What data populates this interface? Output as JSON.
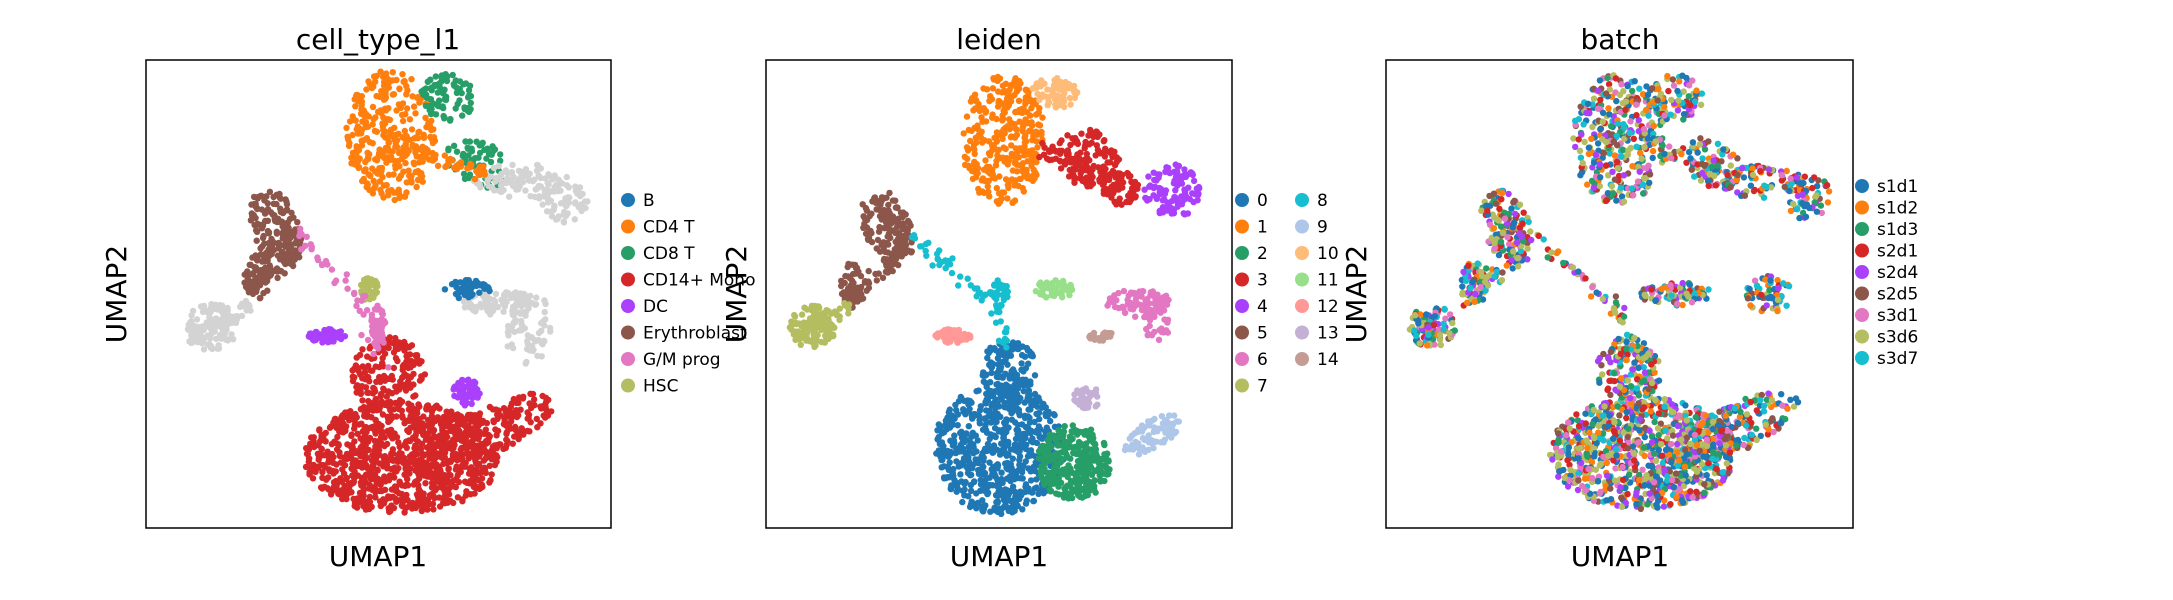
{
  "chart_data": [
    {
      "type": "scatter",
      "title": "cell_type_l1",
      "xlabel": "UMAP1",
      "ylabel": "UMAP2",
      "grid": false,
      "legend_placement": "right",
      "legend": [
        {
          "label": "B",
          "color": "#1f77b4"
        },
        {
          "label": "CD4 T",
          "color": "#ff7f0e"
        },
        {
          "label": "CD8 T",
          "color": "#279e68"
        },
        {
          "label": "CD14+ Mono",
          "color": "#d62728"
        },
        {
          "label": "DC",
          "color": "#aa40fc"
        },
        {
          "label": "Erythroblast",
          "color": "#8c564b"
        },
        {
          "label": "G/M prog",
          "color": "#e377c2"
        },
        {
          "label": "HSC",
          "color": "#b5bd61"
        }
      ],
      "regions": [
        {
          "category": "CD4 T",
          "cx": 0.53,
          "cy": 0.84,
          "rx": 0.1,
          "ry": 0.14,
          "rot": 0,
          "n": 320
        },
        {
          "category": "CD8 T",
          "cx": 0.65,
          "cy": 0.92,
          "rx": 0.06,
          "ry": 0.05,
          "rot": 0,
          "n": 80
        },
        {
          "category": "CD8 T",
          "cx": 0.71,
          "cy": 0.78,
          "rx": 0.07,
          "ry": 0.05,
          "rot": -30,
          "n": 60
        },
        {
          "category": "unassigned",
          "cx": 0.8,
          "cy": 0.74,
          "rx": 0.1,
          "ry": 0.04,
          "rot": 0,
          "n": 90
        },
        {
          "category": "unassigned",
          "cx": 0.9,
          "cy": 0.7,
          "rx": 0.05,
          "ry": 0.05,
          "rot": 0,
          "n": 60
        },
        {
          "category": "unassigned",
          "cx": 0.14,
          "cy": 0.43,
          "rx": 0.06,
          "ry": 0.05,
          "rot": 0,
          "n": 100
        },
        {
          "category": "unassigned",
          "cx": 0.77,
          "cy": 0.48,
          "rx": 0.09,
          "ry": 0.025,
          "rot": 0,
          "n": 90
        },
        {
          "category": "unassigned",
          "cx": 0.82,
          "cy": 0.42,
          "rx": 0.05,
          "ry": 0.07,
          "rot": 0,
          "n": 60
        },
        {
          "category": "B",
          "cx": 0.69,
          "cy": 0.51,
          "rx": 0.05,
          "ry": 0.02,
          "rot": 0,
          "n": 60
        },
        {
          "category": "Erythroblast",
          "cx": 0.28,
          "cy": 0.64,
          "rx": 0.05,
          "ry": 0.09,
          "rot": 20,
          "n": 140
        },
        {
          "category": "Erythroblast",
          "cx": 0.24,
          "cy": 0.54,
          "rx": 0.03,
          "ry": 0.05,
          "rot": 0,
          "n": 60
        },
        {
          "category": "CD14+ Mono",
          "cx": 0.55,
          "cy": 0.15,
          "rx": 0.21,
          "ry": 0.12,
          "rot": 0,
          "n": 900
        },
        {
          "category": "CD14+ Mono",
          "cx": 0.72,
          "cy": 0.2,
          "rx": 0.18,
          "ry": 0.05,
          "rot": 25,
          "n": 250
        },
        {
          "category": "CD14+ Mono",
          "cx": 0.52,
          "cy": 0.33,
          "rx": 0.08,
          "ry": 0.08,
          "rot": 0,
          "n": 180
        },
        {
          "category": "DC",
          "cx": 0.39,
          "cy": 0.41,
          "rx": 0.04,
          "ry": 0.015,
          "rot": 0,
          "n": 60
        },
        {
          "category": "DC",
          "cx": 0.69,
          "cy": 0.29,
          "rx": 0.03,
          "ry": 0.03,
          "rot": 0,
          "n": 50
        },
        {
          "category": "G/M prog",
          "cx": 0.5,
          "cy": 0.43,
          "rx": 0.015,
          "ry": 0.05,
          "rot": 0,
          "n": 40
        },
        {
          "category": "HSC",
          "cx": 0.48,
          "cy": 0.51,
          "rx": 0.02,
          "ry": 0.025,
          "rot": 0,
          "n": 40
        }
      ],
      "paths": [
        {
          "category": "Erythroblast",
          "pts": [
            [
              0.3,
              0.66
            ],
            [
              0.31,
              0.61
            ],
            [
              0.3,
              0.56
            ],
            [
              0.26,
              0.54
            ],
            [
              0.22,
              0.5
            ]
          ],
          "n": 60
        },
        {
          "category": "unassigned",
          "pts": [
            [
              0.22,
              0.48
            ],
            [
              0.18,
              0.44
            ],
            [
              0.1,
              0.42
            ]
          ],
          "n": 50
        },
        {
          "category": "G/M prog",
          "pts": [
            [
              0.33,
              0.63
            ],
            [
              0.39,
              0.56
            ],
            [
              0.46,
              0.49
            ],
            [
              0.49,
              0.42
            ],
            [
              0.51,
              0.34
            ]
          ],
          "n": 45
        },
        {
          "category": "CD4 T",
          "pts": [
            [
              0.59,
              0.8
            ],
            [
              0.66,
              0.78
            ],
            [
              0.73,
              0.76
            ]
          ],
          "n": 40
        }
      ]
    },
    {
      "type": "scatter",
      "title": "leiden",
      "xlabel": "UMAP1",
      "ylabel": "UMAP2",
      "grid": false,
      "legend_placement": "right",
      "legend": [
        {
          "label": "0",
          "color": "#1f77b4"
        },
        {
          "label": "1",
          "color": "#ff7f0e"
        },
        {
          "label": "2",
          "color": "#279e68"
        },
        {
          "label": "3",
          "color": "#d62728"
        },
        {
          "label": "4",
          "color": "#aa40fc"
        },
        {
          "label": "5",
          "color": "#8c564b"
        },
        {
          "label": "6",
          "color": "#e377c2"
        },
        {
          "label": "7",
          "color": "#b5bd61"
        },
        {
          "label": "8",
          "color": "#17becf"
        },
        {
          "label": "9",
          "color": "#aec7e8"
        },
        {
          "label": "10",
          "color": "#ffbb78"
        },
        {
          "label": "11",
          "color": "#98df8a"
        },
        {
          "label": "12",
          "color": "#ff9896"
        },
        {
          "label": "13",
          "color": "#c5b0d5"
        },
        {
          "label": "14",
          "color": "#c49c94"
        }
      ],
      "regions": [
        {
          "category": "1",
          "cx": 0.51,
          "cy": 0.83,
          "rx": 0.09,
          "ry": 0.14,
          "rot": 0,
          "n": 320
        },
        {
          "category": "10",
          "cx": 0.62,
          "cy": 0.93,
          "rx": 0.05,
          "ry": 0.035,
          "rot": 0,
          "n": 70
        },
        {
          "category": "3",
          "cx": 0.69,
          "cy": 0.79,
          "rx": 0.07,
          "ry": 0.06,
          "rot": -30,
          "n": 110
        },
        {
          "category": "3",
          "cx": 0.76,
          "cy": 0.73,
          "rx": 0.04,
          "ry": 0.04,
          "rot": 0,
          "n": 70
        },
        {
          "category": "4",
          "cx": 0.87,
          "cy": 0.72,
          "rx": 0.06,
          "ry": 0.06,
          "rot": 0,
          "n": 110
        },
        {
          "category": "7",
          "cx": 0.1,
          "cy": 0.43,
          "rx": 0.05,
          "ry": 0.045,
          "rot": 0,
          "n": 100
        },
        {
          "category": "5",
          "cx": 0.26,
          "cy": 0.64,
          "rx": 0.05,
          "ry": 0.09,
          "rot": 20,
          "n": 130
        },
        {
          "category": "5",
          "cx": 0.19,
          "cy": 0.52,
          "rx": 0.03,
          "ry": 0.05,
          "rot": 0,
          "n": 60
        },
        {
          "category": "12",
          "cx": 0.4,
          "cy": 0.41,
          "rx": 0.04,
          "ry": 0.015,
          "rot": 0,
          "n": 50
        },
        {
          "category": "11",
          "cx": 0.62,
          "cy": 0.51,
          "rx": 0.05,
          "ry": 0.02,
          "rot": 0,
          "n": 50
        },
        {
          "category": "6",
          "cx": 0.8,
          "cy": 0.48,
          "rx": 0.07,
          "ry": 0.03,
          "rot": 0,
          "n": 70
        },
        {
          "category": "6",
          "cx": 0.84,
          "cy": 0.44,
          "rx": 0.03,
          "ry": 0.04,
          "rot": 0,
          "n": 30
        },
        {
          "category": "14",
          "cx": 0.72,
          "cy": 0.41,
          "rx": 0.03,
          "ry": 0.01,
          "rot": 0,
          "n": 20
        },
        {
          "category": "0",
          "cx": 0.5,
          "cy": 0.17,
          "rx": 0.14,
          "ry": 0.14,
          "rot": 0,
          "n": 650
        },
        {
          "category": "0",
          "cx": 0.52,
          "cy": 0.34,
          "rx": 0.06,
          "ry": 0.06,
          "rot": 0,
          "n": 120
        },
        {
          "category": "2",
          "cx": 0.66,
          "cy": 0.14,
          "rx": 0.08,
          "ry": 0.08,
          "rot": 0,
          "n": 300
        },
        {
          "category": "9",
          "cx": 0.83,
          "cy": 0.2,
          "rx": 0.07,
          "ry": 0.03,
          "rot": 30,
          "n": 80
        },
        {
          "category": "13",
          "cx": 0.69,
          "cy": 0.28,
          "rx": 0.03,
          "ry": 0.025,
          "rot": 0,
          "n": 40
        },
        {
          "category": "8",
          "cx": 0.5,
          "cy": 0.5,
          "rx": 0.02,
          "ry": 0.03,
          "rot": 0,
          "n": 40
        }
      ],
      "paths": [
        {
          "category": "5",
          "pts": [
            [
              0.28,
              0.66
            ],
            [
              0.29,
              0.61
            ],
            [
              0.27,
              0.56
            ],
            [
              0.22,
              0.53
            ],
            [
              0.17,
              0.48
            ]
          ],
          "n": 60
        },
        {
          "category": "7",
          "pts": [
            [
              0.17,
              0.47
            ],
            [
              0.13,
              0.44
            ],
            [
              0.07,
              0.43
            ]
          ],
          "n": 40
        },
        {
          "category": "8",
          "pts": [
            [
              0.31,
              0.63
            ],
            [
              0.38,
              0.57
            ],
            [
              0.45,
              0.51
            ],
            [
              0.5,
              0.46
            ],
            [
              0.51,
              0.38
            ]
          ],
          "n": 50
        },
        {
          "category": "3",
          "pts": [
            [
              0.59,
              0.81
            ],
            [
              0.65,
              0.79
            ],
            [
              0.72,
              0.76
            ]
          ],
          "n": 40
        }
      ]
    },
    {
      "type": "scatter",
      "title": "batch",
      "xlabel": "UMAP1",
      "ylabel": "UMAP2",
      "grid": false,
      "legend_placement": "right",
      "legend": [
        {
          "label": "s1d1",
          "color": "#1f77b4"
        },
        {
          "label": "s1d2",
          "color": "#ff7f0e"
        },
        {
          "label": "s1d3",
          "color": "#279e68"
        },
        {
          "label": "s2d1",
          "color": "#d62728"
        },
        {
          "label": "s2d4",
          "color": "#aa40fc"
        },
        {
          "label": "s2d5",
          "color": "#8c564b"
        },
        {
          "label": "s3d1",
          "color": "#e377c2"
        },
        {
          "label": "s3d6",
          "color": "#b5bd61"
        },
        {
          "label": "s3d7",
          "color": "#17becf"
        }
      ],
      "regions": [
        {
          "category": "mixed",
          "cx": 0.5,
          "cy": 0.83,
          "rx": 0.1,
          "ry": 0.14,
          "rot": 0,
          "n": 340
        },
        {
          "category": "mixed",
          "cx": 0.62,
          "cy": 0.92,
          "rx": 0.06,
          "ry": 0.05,
          "rot": 0,
          "n": 80
        },
        {
          "category": "mixed",
          "cx": 0.7,
          "cy": 0.78,
          "rx": 0.07,
          "ry": 0.05,
          "rot": -30,
          "n": 70
        },
        {
          "category": "mixed",
          "cx": 0.8,
          "cy": 0.74,
          "rx": 0.08,
          "ry": 0.035,
          "rot": 0,
          "n": 70
        },
        {
          "category": "mixed",
          "cx": 0.9,
          "cy": 0.71,
          "rx": 0.05,
          "ry": 0.05,
          "rot": 0,
          "n": 70
        },
        {
          "category": "mixed",
          "cx": 0.1,
          "cy": 0.43,
          "rx": 0.05,
          "ry": 0.045,
          "rot": 0,
          "n": 100
        },
        {
          "category": "mixed",
          "cx": 0.26,
          "cy": 0.64,
          "rx": 0.05,
          "ry": 0.09,
          "rot": 20,
          "n": 130
        },
        {
          "category": "mixed",
          "cx": 0.19,
          "cy": 0.52,
          "rx": 0.03,
          "ry": 0.05,
          "rot": 0,
          "n": 60
        },
        {
          "category": "mixed",
          "cx": 0.62,
          "cy": 0.5,
          "rx": 0.08,
          "ry": 0.025,
          "rot": 0,
          "n": 80
        },
        {
          "category": "mixed",
          "cx": 0.82,
          "cy": 0.5,
          "rx": 0.05,
          "ry": 0.04,
          "rot": 0,
          "n": 60
        },
        {
          "category": "mixed",
          "cx": 0.55,
          "cy": 0.16,
          "rx": 0.2,
          "ry": 0.12,
          "rot": 0,
          "n": 900
        },
        {
          "category": "mixed",
          "cx": 0.74,
          "cy": 0.21,
          "rx": 0.16,
          "ry": 0.05,
          "rot": 25,
          "n": 220
        },
        {
          "category": "mixed",
          "cx": 0.52,
          "cy": 0.34,
          "rx": 0.07,
          "ry": 0.07,
          "rot": 0,
          "n": 150
        }
      ],
      "paths": [
        {
          "category": "mixed",
          "pts": [
            [
              0.28,
              0.66
            ],
            [
              0.29,
              0.61
            ],
            [
              0.27,
              0.56
            ],
            [
              0.22,
              0.53
            ],
            [
              0.17,
              0.48
            ]
          ],
          "n": 60
        },
        {
          "category": "mixed",
          "pts": [
            [
              0.31,
              0.63
            ],
            [
              0.38,
              0.57
            ],
            [
              0.45,
              0.51
            ],
            [
              0.5,
              0.45
            ],
            [
              0.52,
              0.36
            ]
          ],
          "n": 50
        },
        {
          "category": "mixed",
          "pts": [
            [
              0.58,
              0.81
            ],
            [
              0.65,
              0.79
            ],
            [
              0.72,
              0.76
            ]
          ],
          "n": 40
        }
      ]
    }
  ],
  "colors": {
    "unassigned": "#d3d3d3",
    "axes_frame": "#000000",
    "mixed_palette": [
      "#1f77b4",
      "#1f77b4",
      "#b5bd61",
      "#b5bd61",
      "#279e68",
      "#17becf",
      "#e377c2",
      "#d62728",
      "#aa40fc",
      "#ff7f0e",
      "#8c564b"
    ]
  }
}
